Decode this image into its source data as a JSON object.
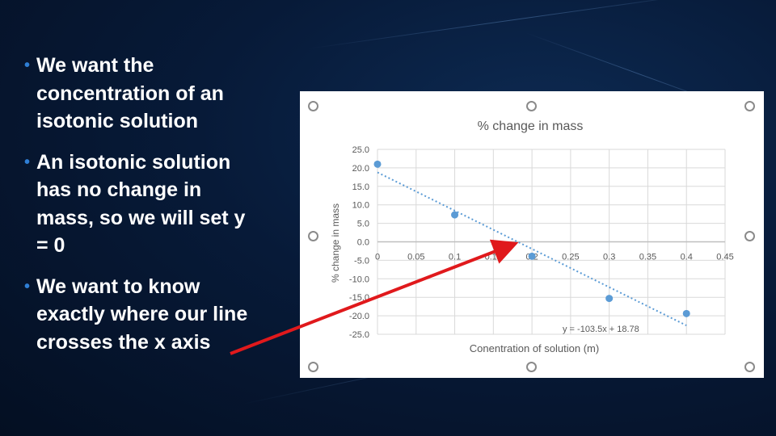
{
  "slide": {
    "bullets": [
      "We want the concentration of an isotonic solution",
      "An isotonic solution has no change in mass, so we will set y = 0",
      "We want to know exactly where our line crosses the x axis"
    ]
  },
  "colors": {
    "background": "#071a38",
    "bullet_marker": "#2f7fd6",
    "data_point": "#5b9bd5",
    "trendline": "#5b9bd5",
    "arrow": "#e0191c"
  },
  "chart_data": {
    "type": "scatter",
    "title": "% change in mass",
    "xlabel": "Conentration of solution (m)",
    "ylabel": "% change in mass",
    "xlim": [
      0,
      0.45
    ],
    "ylim": [
      -25,
      25
    ],
    "x_ticks": [
      "0",
      "0.05",
      "0.1",
      "0.15",
      "0.2",
      "0.25",
      "0.3",
      "0.35",
      "0.4",
      "0.45"
    ],
    "y_ticks": [
      "25.0",
      "20.0",
      "15.0",
      "10.0",
      "5.0",
      "0.0",
      "-5.0",
      "-10.0",
      "-15.0",
      "-20.0",
      "-25.0"
    ],
    "grid": true,
    "points": [
      {
        "x": 0.0,
        "y": 21.0
      },
      {
        "x": 0.1,
        "y": 7.3
      },
      {
        "x": 0.2,
        "y": -3.9
      },
      {
        "x": 0.3,
        "y": -15.3
      },
      {
        "x": 0.4,
        "y": -19.4
      }
    ],
    "trendline": {
      "slope": -103.5,
      "intercept": 18.78,
      "x_range": [
        0,
        0.4
      ],
      "equation_label": "y = -103.5x + 18.78"
    }
  }
}
